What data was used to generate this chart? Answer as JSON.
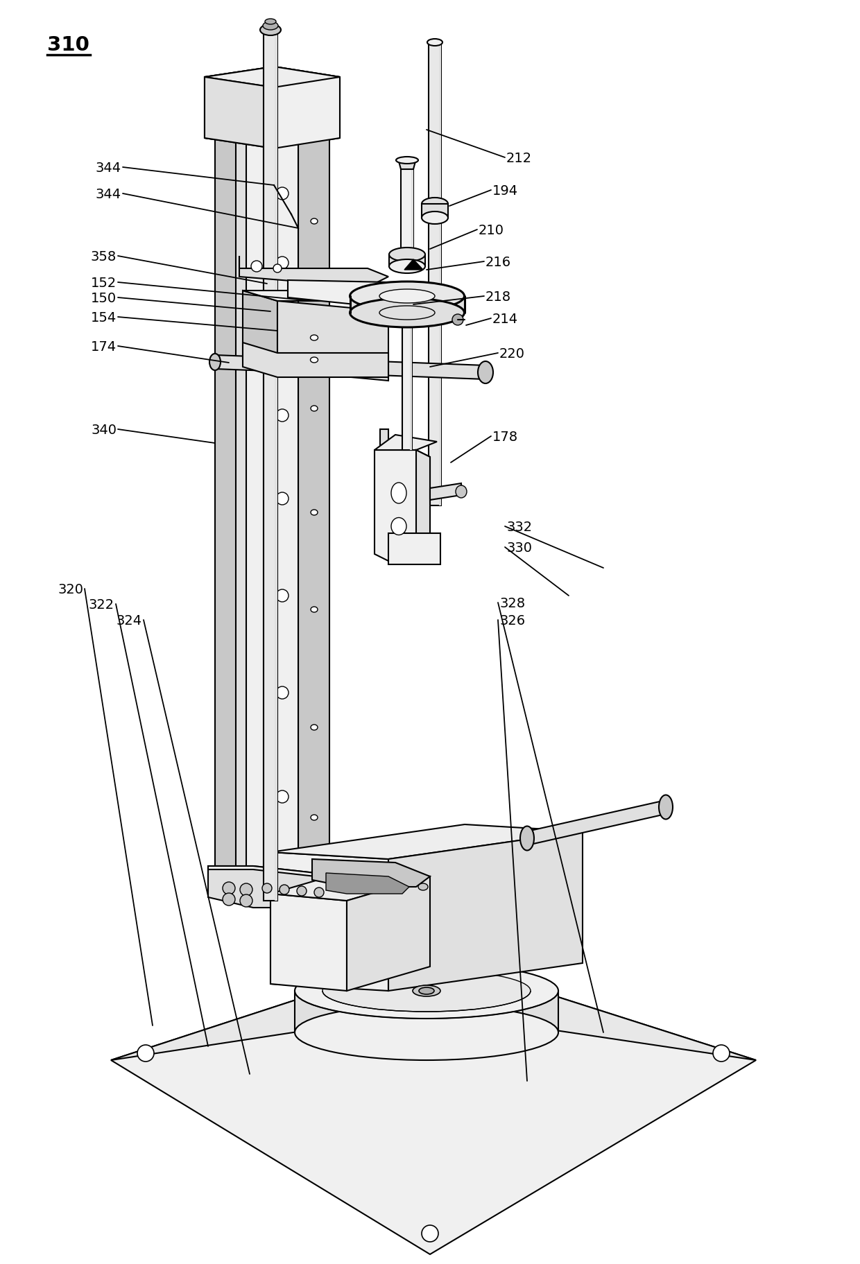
{
  "background_color": "#ffffff",
  "line_color": "#000000",
  "lw": 1.5,
  "lw_thick": 2.2,
  "figsize": [
    12.4,
    18.24
  ],
  "dpi": 100,
  "fc_light": "#f0f0f0",
  "fc_mid": "#e0e0e0",
  "fc_dark": "#c8c8c8",
  "fc_darker": "#b0b0b0",
  "labels": [
    [
      "310",
      68,
      68,
      -1,
      -1,
      "left",
      true
    ],
    [
      "344",
      175,
      242,
      395,
      268,
      "right",
      false
    ],
    [
      "344",
      175,
      280,
      430,
      330,
      "right",
      false
    ],
    [
      "358",
      168,
      370,
      385,
      410,
      "right",
      false
    ],
    [
      "152",
      168,
      408,
      450,
      435,
      "right",
      false
    ],
    [
      "150",
      168,
      430,
      390,
      450,
      "right",
      false
    ],
    [
      "154",
      168,
      458,
      400,
      478,
      "right",
      false
    ],
    [
      "174",
      168,
      500,
      330,
      524,
      "right",
      false
    ],
    [
      "340",
      168,
      620,
      310,
      640,
      "right",
      false
    ],
    [
      "212",
      730,
      228,
      615,
      188,
      "left",
      false
    ],
    [
      "194",
      710,
      275,
      648,
      298,
      "left",
      false
    ],
    [
      "210",
      690,
      332,
      620,
      360,
      "left",
      false
    ],
    [
      "216",
      700,
      378,
      615,
      390,
      "left",
      false
    ],
    [
      "218",
      700,
      428,
      596,
      440,
      "left",
      false
    ],
    [
      "214",
      710,
      460,
      672,
      470,
      "left",
      false
    ],
    [
      "220",
      720,
      510,
      620,
      530,
      "left",
      false
    ],
    [
      "178",
      710,
      630,
      650,
      668,
      "left",
      false
    ],
    [
      "332",
      730,
      760,
      870,
      820,
      "left",
      false
    ],
    [
      "330",
      730,
      790,
      820,
      860,
      "left",
      false
    ],
    [
      "320",
      120,
      850,
      220,
      1480,
      "right",
      false
    ],
    [
      "322",
      165,
      872,
      300,
      1510,
      "right",
      false
    ],
    [
      "324",
      205,
      895,
      360,
      1550,
      "right",
      false
    ],
    [
      "328",
      720,
      870,
      870,
      1490,
      "left",
      false
    ],
    [
      "326",
      720,
      895,
      760,
      1560,
      "left",
      false
    ]
  ]
}
